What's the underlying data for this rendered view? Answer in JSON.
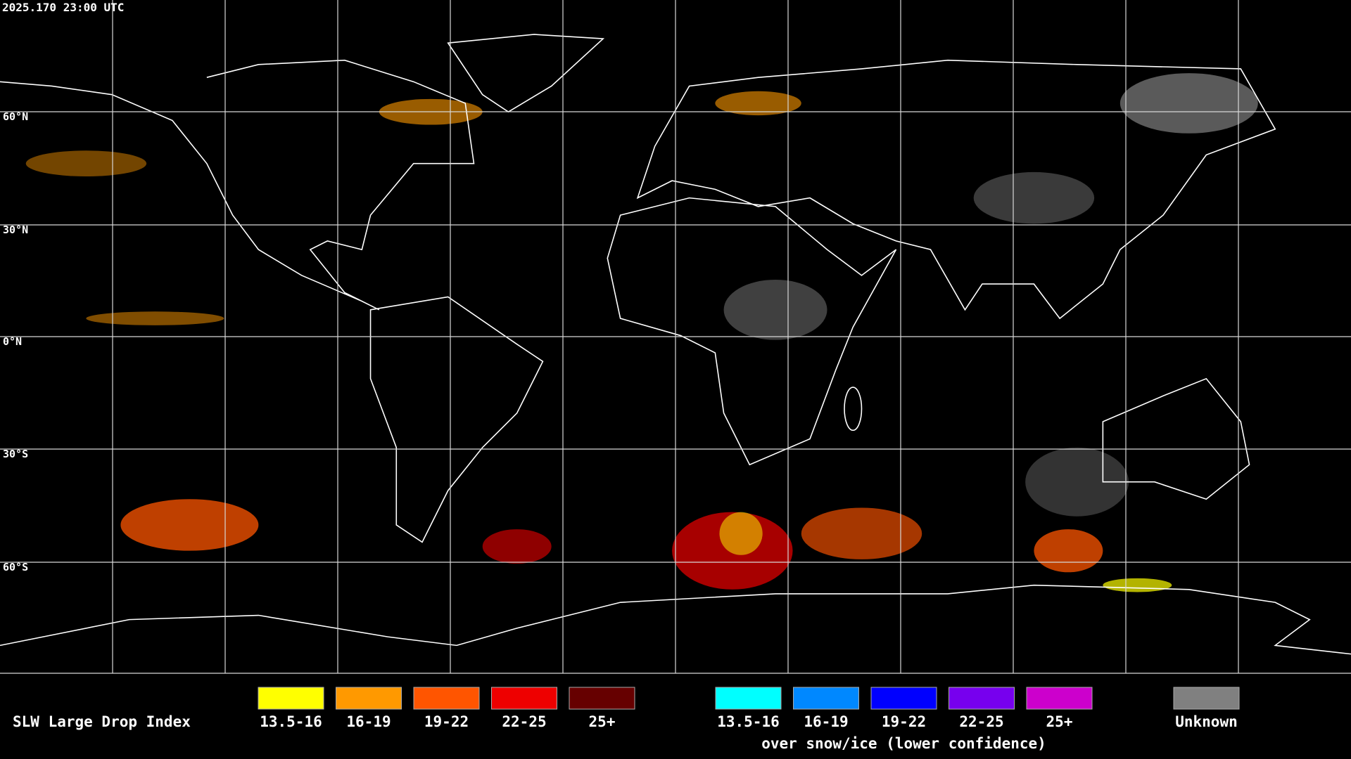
{
  "timestamp": "2025.170 23:00 UTC",
  "latitude_labels": [
    "60°N",
    "30°N",
    "0°N",
    "30°S",
    "60°S"
  ],
  "legend": {
    "title": "SLW Large Drop Index",
    "groups": [
      {
        "items": [
          {
            "label": "13.5-16",
            "color": "#ffff00"
          },
          {
            "label": "16-19",
            "color": "#ff9900"
          },
          {
            "label": "19-22",
            "color": "#ff5500"
          },
          {
            "label": "22-25",
            "color": "#ee0000"
          },
          {
            "label": "25+",
            "color": "#660000"
          }
        ]
      },
      {
        "items": [
          {
            "label": "13.5-16",
            "color": "#00ffff"
          },
          {
            "label": "16-19",
            "color": "#0088ff"
          },
          {
            "label": "19-22",
            "color": "#0000ff"
          },
          {
            "label": "22-25",
            "color": "#7700ee"
          },
          {
            "label": "25+",
            "color": "#cc00cc"
          }
        ],
        "caption": "over snow/ice (lower confidence)"
      },
      {
        "items": [
          {
            "label": "Unknown",
            "color": "#808080"
          }
        ]
      }
    ]
  }
}
